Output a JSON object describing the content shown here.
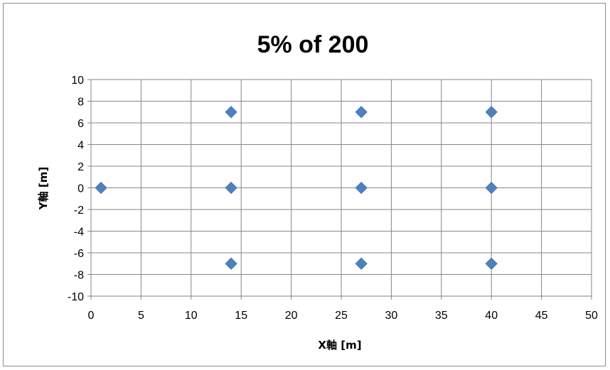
{
  "chart_data": {
    "type": "scatter",
    "title": "5% of 200",
    "xlabel": "X軸 [m]",
    "ylabel": "Y軸 [m]",
    "xlim": [
      0,
      50
    ],
    "ylim": [
      -10,
      10
    ],
    "x_ticks": [
      0,
      5,
      10,
      15,
      20,
      25,
      30,
      35,
      40,
      45,
      50
    ],
    "y_ticks": [
      10,
      8,
      6,
      4,
      2,
      0,
      -2,
      -4,
      -6,
      -8,
      -10
    ],
    "grid": true,
    "legend": "none",
    "marker": "diamond",
    "series": [
      {
        "color": "#4f81bd",
        "points": [
          {
            "x": 1,
            "y": 0
          },
          {
            "x": 14,
            "y": 7
          },
          {
            "x": 14,
            "y": 0
          },
          {
            "x": 14,
            "y": -7
          },
          {
            "x": 27,
            "y": 7
          },
          {
            "x": 27,
            "y": 0
          },
          {
            "x": 27,
            "y": -7
          },
          {
            "x": 40,
            "y": 7
          },
          {
            "x": 40,
            "y": 0
          },
          {
            "x": 40,
            "y": -7
          }
        ]
      }
    ]
  }
}
